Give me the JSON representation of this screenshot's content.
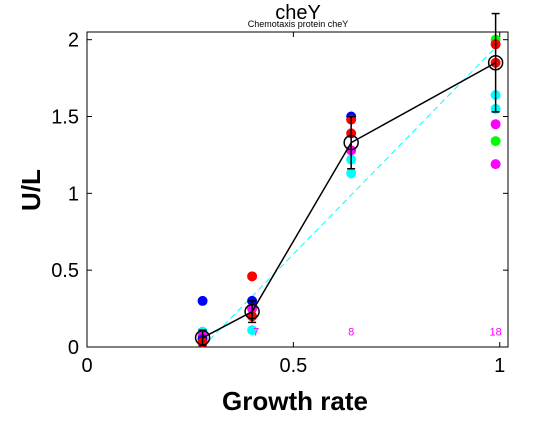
{
  "chart_data": {
    "type": "scatter",
    "title": "cheY",
    "subtitle": "Chemotaxis protein cheY",
    "xlabel": "Growth rate",
    "ylabel": "U/L",
    "xlim": [
      0,
      1.02
    ],
    "ylim": [
      0,
      2.05
    ],
    "x_ticks": [
      0,
      0.5,
      1
    ],
    "x_tick_labels": [
      "0",
      "0.5",
      "1"
    ],
    "y_ticks": [
      0,
      0.5,
      1,
      1.5,
      2
    ],
    "y_tick_labels": [
      "0",
      "0.5",
      "1",
      "1.5",
      "2"
    ],
    "grid": false,
    "colors": {
      "blue": "#0000ff",
      "red": "#ff0000",
      "magenta": "#ff00ff",
      "cyan": "#00ffff",
      "green": "#00ff00",
      "mean": "#000000",
      "fit": "#00ffff",
      "annotation": "#ff00ff"
    },
    "points": [
      {
        "x": 0.28,
        "y": 0.3,
        "color": "blue"
      },
      {
        "x": 0.28,
        "y": 0.1,
        "color": "cyan"
      },
      {
        "x": 0.28,
        "y": 0.07,
        "color": "magenta"
      },
      {
        "x": 0.28,
        "y": 0.05,
        "color": "blue"
      },
      {
        "x": 0.28,
        "y": 0.03,
        "color": "red"
      },
      {
        "x": 0.4,
        "y": 0.46,
        "color": "red"
      },
      {
        "x": 0.4,
        "y": 0.3,
        "color": "blue"
      },
      {
        "x": 0.4,
        "y": 0.25,
        "color": "magenta"
      },
      {
        "x": 0.4,
        "y": 0.2,
        "color": "red"
      },
      {
        "x": 0.4,
        "y": 0.11,
        "color": "cyan"
      },
      {
        "x": 0.64,
        "y": 1.5,
        "color": "blue"
      },
      {
        "x": 0.64,
        "y": 1.48,
        "color": "red"
      },
      {
        "x": 0.64,
        "y": 1.39,
        "color": "red"
      },
      {
        "x": 0.64,
        "y": 1.28,
        "color": "magenta"
      },
      {
        "x": 0.64,
        "y": 1.22,
        "color": "cyan"
      },
      {
        "x": 0.64,
        "y": 1.13,
        "color": "cyan"
      },
      {
        "x": 0.99,
        "y": 2.0,
        "color": "green"
      },
      {
        "x": 0.99,
        "y": 1.97,
        "color": "red"
      },
      {
        "x": 0.99,
        "y": 1.85,
        "color": "red"
      },
      {
        "x": 0.99,
        "y": 1.64,
        "color": "cyan"
      },
      {
        "x": 0.99,
        "y": 1.55,
        "color": "cyan"
      },
      {
        "x": 0.99,
        "y": 1.45,
        "color": "magenta"
      },
      {
        "x": 0.99,
        "y": 1.34,
        "color": "green"
      },
      {
        "x": 0.99,
        "y": 1.19,
        "color": "magenta"
      }
    ],
    "mean_series": {
      "x": [
        0.28,
        0.4,
        0.64,
        0.99
      ],
      "y": [
        0.06,
        0.23,
        1.33,
        1.85
      ],
      "err": [
        0.05,
        0.07,
        0.17,
        0.32
      ]
    },
    "fit_line": {
      "x": [
        0.28,
        0.99
      ],
      "y": [
        0.0,
        1.95
      ]
    },
    "annotations": [
      {
        "x": 0.41,
        "y": 0.1,
        "text": "7"
      },
      {
        "x": 0.64,
        "y": 0.1,
        "text": "8"
      },
      {
        "x": 0.99,
        "y": 0.1,
        "text": "18"
      }
    ]
  }
}
